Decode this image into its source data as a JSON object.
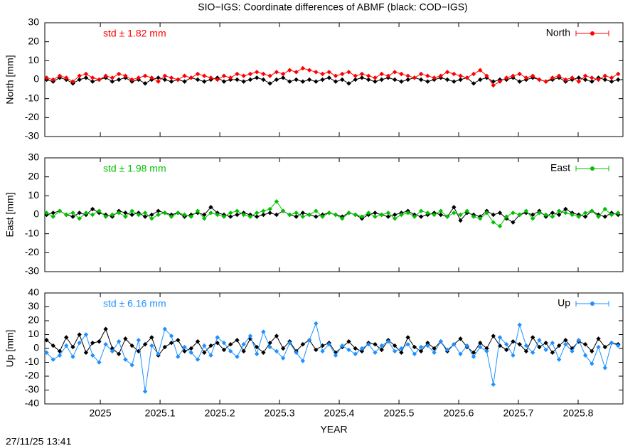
{
  "title": "SIO−IGS: Coordinate differences of ABMF (black: COD−IGS)",
  "timestamp": "27/11/25 13:41",
  "chart_data": [
    {
      "type": "line",
      "ylabel": "North [mm]",
      "annotation": "std ± 1.82 mm",
      "xlim": [
        2024.907,
        2025.875
      ],
      "ylim": [
        -30,
        30
      ],
      "yticks": [
        -30,
        -20,
        -10,
        0,
        10,
        20,
        30
      ],
      "legend": "upper right",
      "x": [
        2024.91,
        2024.921,
        2024.932,
        2024.943,
        2024.954,
        2024.965,
        2024.976,
        2024.987,
        2024.998,
        2025.009,
        2025.02,
        2025.031,
        2025.042,
        2025.053,
        2025.064,
        2025.075,
        2025.086,
        2025.097,
        2025.108,
        2025.119,
        2025.13,
        2025.141,
        2025.152,
        2025.163,
        2025.174,
        2025.185,
        2025.196,
        2025.207,
        2025.218,
        2025.229,
        2025.24,
        2025.251,
        2025.262,
        2025.273,
        2025.284,
        2025.295,
        2025.306,
        2025.317,
        2025.328,
        2025.339,
        2025.35,
        2025.361,
        2025.372,
        2025.383,
        2025.394,
        2025.405,
        2025.416,
        2025.427,
        2025.438,
        2025.449,
        2025.46,
        2025.471,
        2025.482,
        2025.493,
        2025.504,
        2025.515,
        2025.526,
        2025.537,
        2025.548,
        2025.559,
        2025.57,
        2025.581,
        2025.592,
        2025.603,
        2025.614,
        2025.625,
        2025.636,
        2025.647,
        2025.658,
        2025.669,
        2025.68,
        2025.691,
        2025.702,
        2025.713,
        2025.724,
        2025.735,
        2025.746,
        2025.757,
        2025.768,
        2025.779,
        2025.79,
        2025.801,
        2025.812,
        2025.823,
        2025.834,
        2025.845,
        2025.856,
        2025.867
      ],
      "series": [
        {
          "color": "#000000",
          "values": [
            0,
            -1,
            1,
            0,
            -2,
            0,
            1,
            -1,
            0,
            1,
            -1,
            0,
            1,
            -1,
            0,
            -2,
            0,
            1,
            0,
            -1,
            0,
            -1,
            1,
            0,
            -1,
            0,
            1,
            -1,
            0,
            0,
            -1,
            0,
            1,
            0,
            -2,
            0,
            1,
            -1,
            0,
            -1,
            0,
            -1,
            0,
            1,
            -1,
            0,
            -2,
            0,
            1,
            0,
            -1,
            0,
            1,
            0,
            -1,
            0,
            1,
            0,
            -1,
            0,
            1,
            0,
            -1,
            0,
            1,
            -2,
            0,
            1,
            -1,
            0,
            0,
            1,
            -1,
            0,
            1,
            0,
            -1,
            0,
            1,
            -1,
            0,
            1,
            0,
            -1,
            1,
            0,
            -1,
            0
          ]
        },
        {
          "name": "North",
          "color": "#ff0000",
          "values": [
            1,
            0,
            2,
            1,
            -1,
            2,
            3,
            1,
            0,
            2,
            1,
            3,
            2,
            0,
            1,
            2,
            1,
            -1,
            2,
            1,
            0,
            2,
            1,
            3,
            2,
            1,
            0,
            2,
            1,
            3,
            2,
            3,
            4,
            3,
            2,
            4,
            3,
            5,
            4,
            6,
            5,
            4,
            3,
            4,
            2,
            3,
            4,
            2,
            3,
            2,
            1,
            3,
            2,
            4,
            3,
            2,
            1,
            3,
            2,
            1,
            2,
            4,
            3,
            2,
            1,
            3,
            5,
            2,
            -3,
            -1,
            1,
            2,
            3,
            1,
            2,
            0,
            -1,
            1,
            2,
            0,
            1,
            -1,
            2,
            1,
            0,
            2,
            1,
            3
          ]
        }
      ]
    },
    {
      "type": "line",
      "ylabel": "East [mm]",
      "annotation": "std ± 1.98 mm",
      "xlim": [
        2024.907,
        2025.875
      ],
      "ylim": [
        -30,
        30
      ],
      "yticks": [
        -30,
        -20,
        -10,
        0,
        10,
        20,
        30
      ],
      "legend": "upper right",
      "x": [
        2024.91,
        2024.921,
        2024.932,
        2024.943,
        2024.954,
        2024.965,
        2024.976,
        2024.987,
        2024.998,
        2025.009,
        2025.02,
        2025.031,
        2025.042,
        2025.053,
        2025.064,
        2025.075,
        2025.086,
        2025.097,
        2025.108,
        2025.119,
        2025.13,
        2025.141,
        2025.152,
        2025.163,
        2025.174,
        2025.185,
        2025.196,
        2025.207,
        2025.218,
        2025.229,
        2025.24,
        2025.251,
        2025.262,
        2025.273,
        2025.284,
        2025.295,
        2025.306,
        2025.317,
        2025.328,
        2025.339,
        2025.35,
        2025.361,
        2025.372,
        2025.383,
        2025.394,
        2025.405,
        2025.416,
        2025.427,
        2025.438,
        2025.449,
        2025.46,
        2025.471,
        2025.482,
        2025.493,
        2025.504,
        2025.515,
        2025.526,
        2025.537,
        2025.548,
        2025.559,
        2025.57,
        2025.581,
        2025.592,
        2025.603,
        2025.614,
        2025.625,
        2025.636,
        2025.647,
        2025.658,
        2025.669,
        2025.68,
        2025.691,
        2025.702,
        2025.713,
        2025.724,
        2025.735,
        2025.746,
        2025.757,
        2025.768,
        2025.779,
        2025.79,
        2025.801,
        2025.812,
        2025.823,
        2025.834,
        2025.845,
        2025.856,
        2025.867
      ],
      "series": [
        {
          "color": "#000000",
          "values": [
            0,
            1,
            2,
            0,
            -1,
            1,
            0,
            3,
            1,
            0,
            -1,
            2,
            1,
            0,
            1,
            -1,
            0,
            2,
            1,
            0,
            1,
            -1,
            0,
            1,
            0,
            4,
            1,
            0,
            -1,
            0,
            1,
            0,
            -1,
            0,
            1,
            0,
            2,
            0,
            -1,
            1,
            0,
            -1,
            0,
            1,
            0,
            -1,
            1,
            0,
            -2,
            0,
            1,
            0,
            -1,
            0,
            1,
            2,
            0,
            -1,
            0,
            1,
            0,
            -1,
            4,
            -3,
            1,
            0,
            -1,
            2,
            0,
            1,
            -2,
            -4,
            0,
            1,
            0,
            2,
            -1,
            1,
            0,
            3,
            1,
            0,
            -1,
            2,
            0,
            -1,
            1,
            0
          ]
        },
        {
          "name": "East",
          "color": "#00c000",
          "values": [
            1,
            -1,
            2,
            0,
            1,
            -2,
            1,
            0,
            2,
            -1,
            0,
            1,
            -1,
            2,
            0,
            1,
            -2,
            0,
            1,
            -1,
            1,
            0,
            -1,
            2,
            -2,
            1,
            0,
            -1,
            1,
            2,
            0,
            -1,
            1,
            2,
            3,
            7,
            2,
            0,
            1,
            -1,
            0,
            2,
            -1,
            1,
            0,
            -2,
            1,
            0,
            -1,
            1,
            -1,
            0,
            1,
            -2,
            0,
            1,
            -1,
            2,
            1,
            0,
            2,
            -1,
            1,
            0,
            2,
            -1,
            -2,
            1,
            -4,
            -6,
            -1,
            1,
            0,
            2,
            -2,
            1,
            0,
            -1,
            2,
            1,
            0,
            -1,
            1,
            2,
            -1,
            3,
            0,
            1
          ]
        }
      ]
    },
    {
      "type": "line",
      "ylabel": "Up [mm]",
      "annotation": "std ± 6.16 mm",
      "xlabel": "YEAR",
      "xlim": [
        2024.907,
        2025.875
      ],
      "xticks": [
        2025,
        2025.1,
        2025.2,
        2025.3,
        2025.4,
        2025.5,
        2025.6,
        2025.7,
        2025.8
      ],
      "ylim": [
        -40,
        40
      ],
      "yticks": [
        -40,
        -30,
        -20,
        -10,
        0,
        10,
        20,
        30,
        40
      ],
      "legend": "upper right",
      "x": [
        2024.91,
        2024.921,
        2024.932,
        2024.943,
        2024.954,
        2024.965,
        2024.976,
        2024.987,
        2024.998,
        2025.009,
        2025.02,
        2025.031,
        2025.042,
        2025.053,
        2025.064,
        2025.075,
        2025.086,
        2025.097,
        2025.108,
        2025.119,
        2025.13,
        2025.141,
        2025.152,
        2025.163,
        2025.174,
        2025.185,
        2025.196,
        2025.207,
        2025.218,
        2025.229,
        2025.24,
        2025.251,
        2025.262,
        2025.273,
        2025.284,
        2025.295,
        2025.306,
        2025.317,
        2025.328,
        2025.339,
        2025.35,
        2025.361,
        2025.372,
        2025.383,
        2025.394,
        2025.405,
        2025.416,
        2025.427,
        2025.438,
        2025.449,
        2025.46,
        2025.471,
        2025.482,
        2025.493,
        2025.504,
        2025.515,
        2025.526,
        2025.537,
        2025.548,
        2025.559,
        2025.57,
        2025.581,
        2025.592,
        2025.603,
        2025.614,
        2025.625,
        2025.636,
        2025.647,
        2025.658,
        2025.669,
        2025.68,
        2025.691,
        2025.702,
        2025.713,
        2025.724,
        2025.735,
        2025.746,
        2025.757,
        2025.768,
        2025.779,
        2025.79,
        2025.801,
        2025.812,
        2025.823,
        2025.834,
        2025.845,
        2025.856,
        2025.867
      ],
      "series": [
        {
          "color": "#000000",
          "values": [
            6,
            2,
            -2,
            8,
            1,
            10,
            -3,
            4,
            5,
            14,
            0,
            -4,
            7,
            2,
            -2,
            3,
            8,
            -5,
            1,
            4,
            6,
            -2,
            0,
            5,
            -3,
            2,
            4,
            -1,
            3,
            6,
            -2,
            7,
            1,
            -3,
            4,
            9,
            0,
            5,
            -2,
            3,
            6,
            -1,
            2,
            4,
            -3,
            1,
            5,
            0,
            -2,
            4,
            3,
            -1,
            6,
            2,
            -3,
            8,
            1,
            -2,
            4,
            0,
            5,
            -2,
            3,
            7,
            1,
            -3,
            4,
            0,
            9,
            2,
            -1,
            5,
            3,
            -2,
            8,
            1,
            4,
            -3,
            2,
            6,
            0,
            5,
            3,
            -2,
            7,
            1,
            4,
            3
          ]
        },
        {
          "name": "Up",
          "color": "#1e90ff",
          "values": [
            -3,
            -8,
            -5,
            2,
            -6,
            4,
            10,
            -5,
            -10,
            3,
            -2,
            5,
            -8,
            -12,
            6,
            -31,
            2,
            -4,
            14,
            9,
            -6,
            1,
            -3,
            -8,
            2,
            -5,
            8,
            4,
            -2,
            -6,
            3,
            9,
            -4,
            12,
            1,
            -2,
            -7,
            4,
            -3,
            -9,
            6,
            18,
            -2,
            3,
            -5,
            2,
            -1,
            -4,
            0,
            3,
            -3,
            2,
            5,
            -2,
            0,
            3,
            -4,
            1,
            2,
            -3,
            5,
            -1,
            3,
            -4,
            2,
            -6,
            1,
            -2,
            -26,
            8,
            3,
            -5,
            17,
            2,
            -3,
            6,
            -1,
            4,
            -8,
            3,
            -2,
            6,
            -5,
            -11,
            1,
            -14,
            4,
            2
          ]
        }
      ]
    }
  ]
}
